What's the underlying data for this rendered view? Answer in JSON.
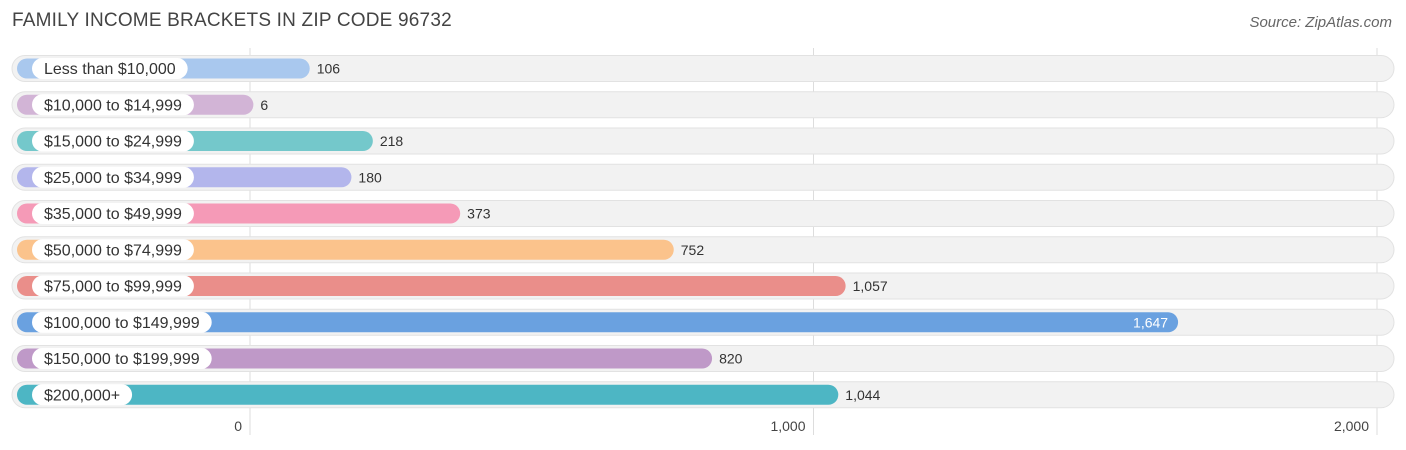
{
  "header": {
    "title": "FAMILY INCOME BRACKETS IN ZIP CODE 96732",
    "source": "Source: ZipAtlas.com"
  },
  "chart_data": {
    "type": "bar",
    "orientation": "horizontal",
    "title": "FAMILY INCOME BRACKETS IN ZIP CODE 96732",
    "categories": [
      "Less than $10,000",
      "$10,000 to $14,999",
      "$15,000 to $24,999",
      "$25,000 to $34,999",
      "$35,000 to $49,999",
      "$50,000 to $74,999",
      "$75,000 to $99,999",
      "$100,000 to $149,999",
      "$150,000 to $199,999",
      "$200,000+"
    ],
    "values": [
      106,
      6,
      218,
      180,
      373,
      752,
      1057,
      1647,
      820,
      1044
    ],
    "value_labels": [
      "106",
      "6",
      "218",
      "180",
      "373",
      "752",
      "1,057",
      "1,647",
      "820",
      "1,044"
    ],
    "colors": [
      "#a9c8ee",
      "#d2b4d6",
      "#74c8cb",
      "#b3b6ec",
      "#f59ab7",
      "#fbc38c",
      "#ea8e8a",
      "#6aa1e0",
      "#bf99c8",
      "#4db6c4"
    ],
    "xlim": [
      0,
      2000
    ],
    "xticks": [
      0,
      1000,
      2000
    ],
    "xtick_labels": [
      "0",
      "1,000",
      "2,000"
    ],
    "grid": true
  }
}
